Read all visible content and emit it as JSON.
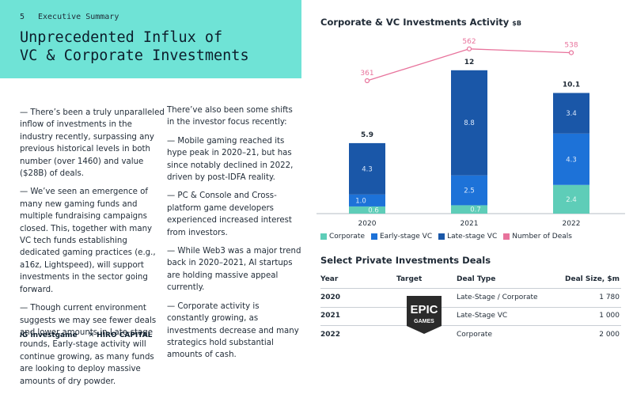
{
  "header": {
    "page_number": "5",
    "section": "Executive Summary",
    "title_line1": "Unprecedented Influx of",
    "title_line2": "VC & Corporate Investments"
  },
  "left_column": [
    "— There’s been a truly unparalleled inflow of investments in the industry recently, surpassing any previous historical levels in both number (over 1460) and value ($28B) of deals.",
    "— We’ve seen an emergence of many new gaming funds and multiple fundraising campaigns closed. This, together with many VC tech funds establishing dedicated gaming practices (e.g., a16z, Lightspeed), will support investments in the sector going forward.",
    "— Though current environment suggests we may see fewer deals and lower amounts in Late-stage rounds, Early-stage activity will continue growing, as many funds are looking to deploy massive amounts of dry powder."
  ],
  "right_column": [
    "There’ve also been some shifts in the investor focus recently:",
    "— Mobile gaming reached its hype peak in 2020–21, but has since notably declined in 2022, driven by post-IDFA reality.",
    "— PC & Console and Cross-platform game developers experienced increased interest from investors.",
    "— While Web3 was a major trend back in 2020–2021, AI startups are holding massive appeal currently.",
    "— Corporate activity is constantly growing, as investments decrease and many strategics hold substantial amounts of cash."
  ],
  "logos": {
    "investgame": "investgame",
    "hiro": "HIRO CAPITAL"
  },
  "chart_data": {
    "type": "bar",
    "title": "Corporate & VC Investments Activity",
    "unit": "$B",
    "categories": [
      "2020",
      "2021",
      "2022"
    ],
    "series": [
      {
        "name": "Corporate",
        "color": "#5ecdb8",
        "values": [
          0.6,
          0.7,
          2.4
        ]
      },
      {
        "name": "Early-stage VC",
        "color": "#1d72d8",
        "values": [
          1.0,
          2.5,
          4.3
        ]
      },
      {
        "name": "Late-stage VC",
        "color": "#1a57a8",
        "values": [
          4.3,
          8.8,
          3.4
        ]
      }
    ],
    "totals": [
      "5.9",
      "12",
      "10.1"
    ],
    "line_series": {
      "name": "Number of Deals",
      "color": "#e8739c",
      "values": [
        361,
        562,
        538
      ]
    },
    "ylim": [
      0,
      12
    ]
  },
  "table": {
    "title": "Select Private Investments Deals",
    "headers": {
      "year": "Year",
      "target": "Target",
      "type": "Deal Type",
      "size": "Deal Size, $m"
    },
    "rows": [
      {
        "year": "2020",
        "type": "Late-Stage / Corporate",
        "size": "1 780"
      },
      {
        "year": "2021",
        "type": "Late-Stage VC",
        "size": "1 000"
      },
      {
        "year": "2022",
        "type": "Corporate",
        "size": "2 000"
      }
    ],
    "target_logo_line1": "EPIC",
    "target_logo_line2": "GAMES"
  }
}
